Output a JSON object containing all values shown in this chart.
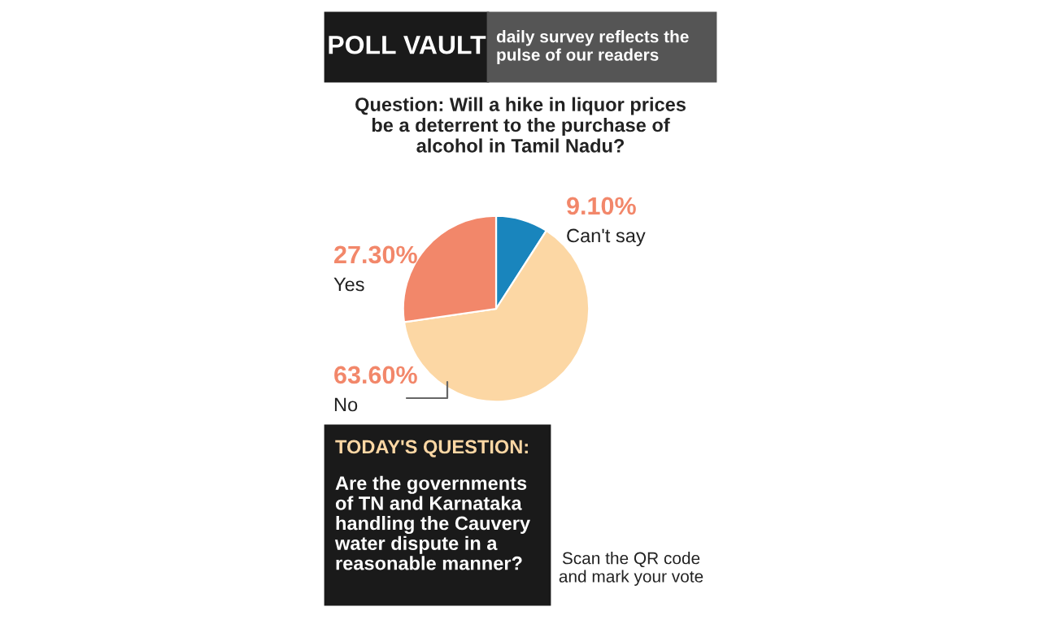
{
  "chart_data": {
    "type": "pie",
    "title": "POLL VAULT",
    "subtitle": "daily survey reflects the\npulse of our readers",
    "annotations": [
      "Question: Will a hike in liquor prices\nbe a deterrent to the purchase of\nalcohol in Tamil Nadu?",
      "TODAY'S QUESTION:",
      "Are the governments\nof TN and Karnataka\nhandling the Cauvery\nwater dispute in a\nreasonable manner?",
      "Scan the QR code\nand mark your vote"
    ],
    "categories": [
      "Can't say",
      "No",
      "Yes"
    ],
    "values": [
      9.1,
      63.6,
      27.3
    ],
    "value_labels": [
      "9.10%",
      "63.60%",
      "27.30%"
    ],
    "colors": [
      "#1985bd",
      "#fcd7a4",
      "#f2876a"
    ]
  }
}
